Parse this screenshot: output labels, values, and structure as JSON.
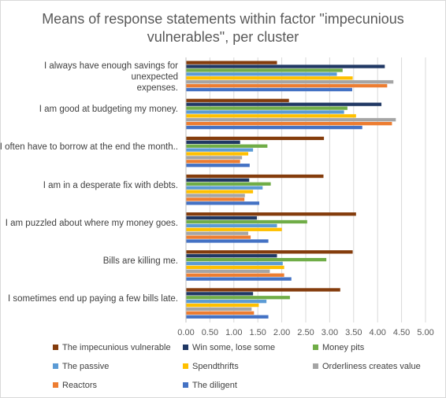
{
  "chart_data": {
    "type": "bar",
    "orientation": "horizontal",
    "title": "Means of response statements within factor \"impecunious vulnerables\", per cluster",
    "title_lines": [
      "Means of response statements within factor \"impecunious",
      "vulnerables\", per cluster"
    ],
    "categories": [
      "I always have enough savings for unexpected expenses.",
      "I am good at budgeting my money.",
      "I often have to borrow at the end the month..",
      "I am in a desperate fix with debts.",
      "I am puzzled about where my money goes.",
      "Bills are killing me.",
      "I sometimes end up paying a few bills late."
    ],
    "category_lines": [
      [
        "I always have enough savings for unexpected",
        "expenses."
      ],
      [
        "I am good at budgeting my money."
      ],
      [
        "I often have to borrow at the end the month.."
      ],
      [
        "I am in a desperate fix with debts."
      ],
      [
        "I am puzzled about where my money goes."
      ],
      [
        "Bills are killing me."
      ],
      [
        "I sometimes end up paying a few bills late."
      ]
    ],
    "series": [
      {
        "name": "The impecunious vulnerable",
        "color": "#843c0c",
        "values": [
          1.9,
          2.15,
          2.88,
          2.87,
          3.55,
          3.48,
          3.22
        ]
      },
      {
        "name": "Win some, lose some",
        "color": "#203864",
        "values": [
          4.15,
          4.08,
          1.13,
          1.32,
          1.48,
          1.9,
          1.4
        ]
      },
      {
        "name": "Money pits",
        "color": "#70ad47",
        "values": [
          3.27,
          3.37,
          1.7,
          1.77,
          2.53,
          2.93,
          2.17
        ]
      },
      {
        "name": "The passive",
        "color": "#5b9bd5",
        "values": [
          3.15,
          3.3,
          1.4,
          1.6,
          1.9,
          2.02,
          1.68
        ]
      },
      {
        "name": "Spendthrifts",
        "color": "#ffc000",
        "values": [
          3.48,
          3.55,
          1.3,
          1.4,
          2.0,
          2.05,
          1.52
        ]
      },
      {
        "name": "Orderliness creates value",
        "color": "#a5a5a5",
        "values": [
          4.33,
          4.38,
          1.17,
          1.23,
          1.3,
          1.75,
          1.37
        ]
      },
      {
        "name": "Reactors",
        "color": "#ed7d31",
        "values": [
          4.2,
          4.3,
          1.13,
          1.22,
          1.35,
          2.05,
          1.42
        ]
      },
      {
        "name": "The diligent",
        "color": "#4472c4",
        "values": [
          3.47,
          3.68,
          1.33,
          1.53,
          1.72,
          2.2,
          1.72
        ]
      }
    ],
    "xlim": [
      0,
      5
    ],
    "x_ticks": [
      "0.00",
      "0.50",
      "1.00",
      "1.50",
      "2.00",
      "2.50",
      "3.00",
      "3.50",
      "4.00",
      "4.50",
      "5.00"
    ],
    "xlabel": "",
    "ylabel": "",
    "grid": true,
    "legend_placement": "bottom"
  }
}
